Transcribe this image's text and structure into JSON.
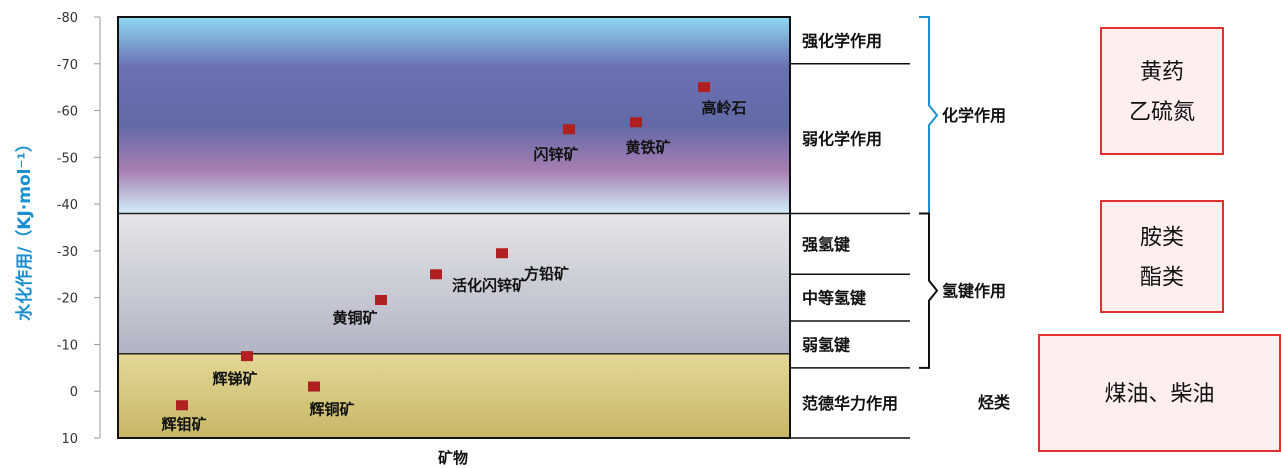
{
  "chart_data": {
    "type": "scatter",
    "title": "",
    "ylabel": "水化作用/（KJ·mol⁻¹）",
    "xlabel": "矿物",
    "ylim": [
      10,
      -80
    ],
    "yticks": [
      -80,
      -70,
      -60,
      -50,
      -40,
      -30,
      -20,
      -10,
      0,
      10
    ],
    "points": [
      {
        "label": "辉钼矿",
        "y": 3
      },
      {
        "label": "辉锑矿",
        "y": -7.5
      },
      {
        "label": "辉铜矿",
        "y": -1
      },
      {
        "label": "黄铜矿",
        "y": -19.5
      },
      {
        "label": "活化闪锌矿",
        "y": -25
      },
      {
        "label": "方铅矿",
        "y": -29.5
      },
      {
        "label": "闪锌矿",
        "y": -56
      },
      {
        "label": "黄铁矿",
        "y": -57.5
      },
      {
        "label": "高岭石",
        "y": -65
      }
    ],
    "bands": [
      {
        "name": "vdw",
        "from": 10,
        "to": -8,
        "color_top": "#ddd08c",
        "color_bottom": "#c9b96a"
      },
      {
        "name": "hydrogen",
        "from": -8,
        "to": -38,
        "color_top": "#e2e4e6",
        "color_bottom": "#b4b6c4"
      },
      {
        "name": "chemical",
        "from": -38,
        "to": -80,
        "colors": [
          "#8ed6f0",
          "#6b73b2",
          "#626aa6",
          "#a580b2",
          "#c9e6f4"
        ]
      }
    ],
    "interactions": [
      {
        "label": "强化学作用",
        "from": -80,
        "to": -70
      },
      {
        "label": "弱化学作用",
        "from": -70,
        "to": -38
      },
      {
        "label": "强氢键",
        "from": -38,
        "to": -25
      },
      {
        "label": "中等氢键",
        "from": -25,
        "to": -15
      },
      {
        "label": "弱氢键",
        "from": -15,
        "to": -5
      },
      {
        "label": "范德华力作用",
        "from": -5,
        "to": 10
      }
    ],
    "groups": [
      {
        "label": "化学作用",
        "from": -80,
        "to": -38,
        "color": "#1a8fd0"
      },
      {
        "label": "氢键作用",
        "from": -38,
        "to": -5,
        "color": "#111111"
      }
    ]
  },
  "reagent_boxes": [
    {
      "lines": [
        "黄药",
        "乙硫氮"
      ]
    },
    {
      "lines": [
        "胺类",
        "酯类"
      ]
    },
    {
      "lines": [
        "煤油、柴油"
      ]
    }
  ],
  "vdw_reagent_label": "烃类",
  "colors": {
    "marker": "#b02020",
    "box_border": "#e03030",
    "axis_label": "#1a8fd0"
  }
}
